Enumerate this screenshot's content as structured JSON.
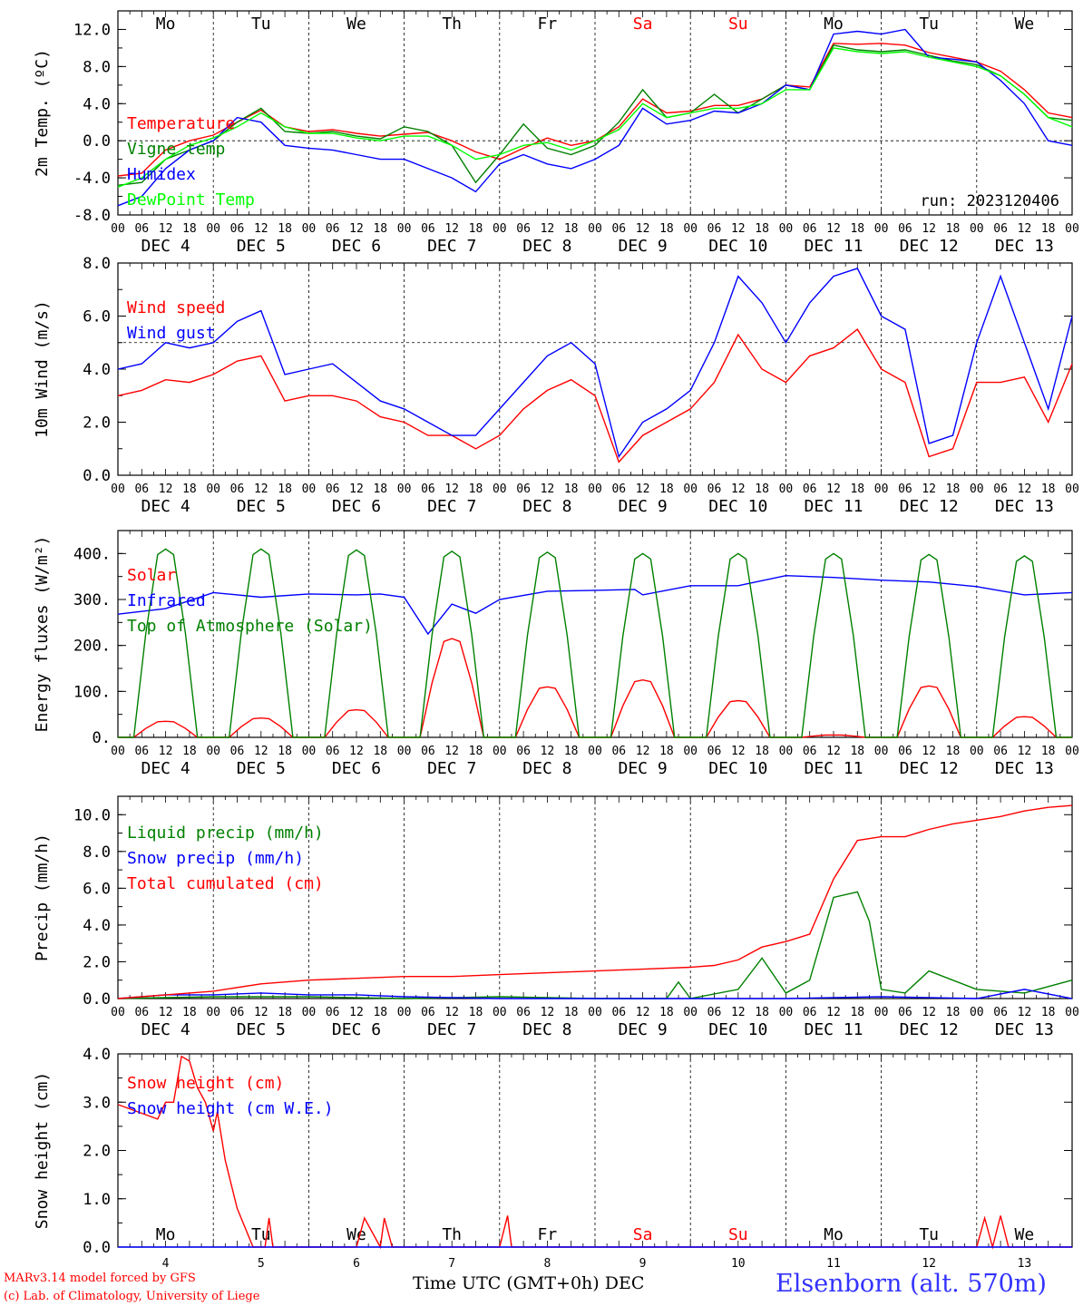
{
  "footer": {
    "credit_line1": "MARv3.14 model forced by GFS",
    "credit_line2": "(c) Lab. of Climatology, University of Liege",
    "time_axis_label": "Time UTC (GMT+0h) DEC",
    "station": "Elsenborn (alt. 570m)"
  },
  "time_axis": {
    "hour_labels": [
      "00",
      "06",
      "12",
      "18"
    ],
    "date_labels": [
      "DEC  4",
      "DEC  5",
      "DEC  6",
      "DEC  7",
      "DEC  8",
      "DEC  9",
      "DEC 10",
      "DEC 11",
      "DEC 12",
      "DEC 13"
    ],
    "weekdays": [
      "Mo",
      "Tu",
      "We",
      "Th",
      "Fr",
      "Sa",
      "Su",
      "Mo",
      "Tu",
      "We"
    ],
    "weekend_color": "#ff0000",
    "day_numbers": [
      "4",
      "5",
      "6",
      "7",
      "8",
      "9",
      "10",
      "11",
      "12",
      "13"
    ]
  },
  "chart_data": [
    {
      "type": "line",
      "ylabel": "2m Temp. (ºC)",
      "ylim": [
        -8,
        14
      ],
      "yticks": [
        "-8.0",
        "-4.0",
        "0.0",
        "4.0",
        "8.0",
        "12.0"
      ],
      "annotation": "run: 2023120406",
      "reference_line": 0,
      "x_unit": "hours since DEC 4 00 UTC",
      "series": [
        {
          "name": "Temperature",
          "color": "#ff0000",
          "x": [
            0,
            6,
            12,
            18,
            24,
            30,
            36,
            42,
            48,
            54,
            60,
            66,
            72,
            78,
            84,
            90,
            96,
            102,
            108,
            114,
            120,
            126,
            132,
            138,
            144,
            150,
            156,
            162,
            168,
            174,
            180,
            186,
            192,
            198,
            204,
            210,
            216,
            222,
            228,
            234,
            240
          ],
          "values": [
            -3.8,
            -3.5,
            -1,
            0,
            0.6,
            2,
            3.3,
            1.5,
            1,
            1.2,
            0.8,
            0.5,
            0.7,
            0.9,
            0,
            -1.2,
            -2,
            -0.8,
            0.3,
            -0.5,
            0,
            1.5,
            4.5,
            3,
            3.2,
            3.8,
            3.8,
            4.5,
            6,
            5.8,
            10.5,
            10.4,
            10.5,
            10.3,
            9.5,
            9,
            8.5,
            7.5,
            5.5,
            3,
            2.5
          ]
        },
        {
          "name": "Vigne temp",
          "color": "#008000",
          "x": [
            0,
            6,
            12,
            18,
            24,
            30,
            36,
            42,
            48,
            54,
            60,
            66,
            72,
            78,
            84,
            90,
            96,
            102,
            108,
            114,
            120,
            126,
            132,
            138,
            144,
            150,
            156,
            162,
            168,
            174,
            180,
            186,
            192,
            198,
            204,
            210,
            216,
            222,
            228,
            234,
            240
          ],
          "values": [
            -4.8,
            -4.5,
            -2,
            -1,
            0,
            2,
            3.5,
            1,
            0.8,
            1,
            0.5,
            0.2,
            1.5,
            1,
            -0.5,
            -4.5,
            -1.5,
            1.8,
            -0.8,
            -1.5,
            -0.5,
            2,
            5.5,
            2.5,
            3,
            5,
            3,
            4.5,
            6,
            5.5,
            10.3,
            9.8,
            9.6,
            9.8,
            9.2,
            8.6,
            8.2,
            7,
            5,
            2.5,
            2.2
          ]
        },
        {
          "name": "Humidex",
          "color": "#0000ff",
          "x": [
            0,
            6,
            12,
            18,
            24,
            30,
            36,
            42,
            48,
            54,
            60,
            66,
            72,
            78,
            84,
            90,
            96,
            102,
            108,
            114,
            120,
            126,
            132,
            138,
            144,
            150,
            156,
            162,
            168,
            174,
            180,
            186,
            192,
            198,
            204,
            210,
            216,
            222,
            228,
            234,
            240
          ],
          "values": [
            -7,
            -6,
            -3,
            -1,
            0,
            2.5,
            2,
            -0.5,
            -0.8,
            -1,
            -1.5,
            -2,
            -2,
            -3,
            -4,
            -5.5,
            -2.5,
            -1.5,
            -2.5,
            -3,
            -2,
            -0.5,
            3.5,
            1.8,
            2.2,
            3.2,
            3,
            4,
            6,
            5.5,
            11.5,
            11.8,
            11.5,
            12,
            9,
            8.8,
            8.5,
            6.5,
            4,
            0,
            -0.5
          ]
        },
        {
          "name": "DewPoint Temp",
          "color": "#00ff00",
          "x": [
            0,
            6,
            12,
            18,
            24,
            30,
            36,
            42,
            48,
            54,
            60,
            66,
            72,
            78,
            84,
            90,
            96,
            102,
            108,
            114,
            120,
            126,
            132,
            138,
            144,
            150,
            156,
            162,
            168,
            174,
            180,
            186,
            192,
            198,
            204,
            210,
            216,
            222,
            228,
            234,
            240
          ],
          "values": [
            -5,
            -4,
            -2,
            -0.5,
            0.3,
            1.5,
            3,
            1.5,
            0.8,
            0.8,
            0.3,
            0,
            0.5,
            0.5,
            -0.5,
            -2,
            -1.5,
            -0.5,
            -0.2,
            -1,
            0,
            1.2,
            4,
            2.5,
            3,
            3.5,
            3.5,
            4,
            5.5,
            5.5,
            10,
            9.6,
            9.4,
            9.6,
            9,
            8.5,
            8,
            7,
            5,
            2.5,
            1.5
          ]
        }
      ]
    },
    {
      "type": "line",
      "ylabel": "10m Wind (m/s)",
      "ylim": [
        0,
        8
      ],
      "yticks": [
        "0.0",
        "2.0",
        "4.0",
        "6.0",
        "8.0"
      ],
      "reference_line": 5,
      "x_unit": "hours since DEC 4 00 UTC",
      "series": [
        {
          "name": "Wind speed",
          "color": "#ff0000",
          "x": [
            0,
            6,
            12,
            18,
            24,
            30,
            36,
            42,
            48,
            54,
            60,
            66,
            72,
            78,
            84,
            90,
            96,
            102,
            108,
            114,
            120,
            126,
            132,
            138,
            144,
            150,
            156,
            162,
            168,
            174,
            180,
            186,
            192,
            198,
            204,
            210,
            216,
            222,
            228,
            234,
            240
          ],
          "values": [
            3,
            3.2,
            3.6,
            3.5,
            3.8,
            4.3,
            4.5,
            2.8,
            3,
            3,
            2.8,
            2.2,
            2,
            1.5,
            1.5,
            1,
            1.5,
            2.5,
            3.2,
            3.6,
            3,
            0.5,
            1.5,
            2,
            2.5,
            3.5,
            5.3,
            4,
            3.5,
            4.5,
            4.8,
            5.5,
            4,
            3.5,
            0.7,
            1,
            3.5,
            3.5,
            3.7,
            2,
            4.2
          ]
        },
        {
          "name": "Wind gust",
          "color": "#0000ff",
          "x": [
            0,
            6,
            12,
            18,
            24,
            30,
            36,
            42,
            48,
            54,
            60,
            66,
            72,
            78,
            84,
            90,
            96,
            102,
            108,
            114,
            120,
            126,
            132,
            138,
            144,
            150,
            156,
            162,
            168,
            174,
            180,
            186,
            192,
            198,
            204,
            210,
            216,
            222,
            228,
            234,
            240
          ],
          "values": [
            4,
            4.2,
            5,
            4.8,
            5,
            5.8,
            6.2,
            3.8,
            4,
            4.2,
            3.5,
            2.8,
            2.5,
            2,
            1.5,
            1.5,
            2.5,
            3.5,
            4.5,
            5,
            4.2,
            0.7,
            2,
            2.5,
            3.2,
            5,
            7.5,
            6.5,
            5,
            6.5,
            7.5,
            7.8,
            6,
            5.5,
            1.2,
            1.5,
            5,
            7.5,
            5,
            2.5,
            6
          ]
        }
      ]
    },
    {
      "type": "line",
      "ylabel": "Energy fluxes (W/m²)",
      "ylim": [
        0,
        450
      ],
      "yticks": [
        "0.",
        "100.",
        "200.",
        "300.",
        "400."
      ],
      "x_unit": "hours since DEC 4 00 UTC",
      "series": [
        {
          "name": "Solar",
          "color": "#ff0000",
          "peaks": [
            [
              12,
              35
            ],
            [
              36,
              42
            ],
            [
              60,
              60
            ],
            [
              84,
              215
            ],
            [
              108,
              110
            ],
            [
              132,
              125
            ],
            [
              156,
              80
            ],
            [
              180,
              5
            ],
            [
              204,
              112
            ],
            [
              228,
              45
            ]
          ]
        },
        {
          "name": "Infrared",
          "color": "#0000ff",
          "x": [
            0,
            12,
            24,
            36,
            48,
            60,
            66,
            72,
            78,
            84,
            90,
            96,
            108,
            120,
            130,
            132,
            144,
            156,
            168,
            180,
            192,
            204,
            216,
            228,
            240
          ],
          "values": [
            268,
            280,
            315,
            305,
            312,
            310,
            312,
            305,
            225,
            290,
            270,
            300,
            318,
            320,
            322,
            310,
            330,
            330,
            352,
            348,
            342,
            338,
            328,
            310,
            315
          ]
        },
        {
          "name": "Top of Atmosphere (Solar)",
          "color": "#008000",
          "peaks": [
            [
              12,
              410
            ],
            [
              36,
              410
            ],
            [
              60,
              408
            ],
            [
              84,
              405
            ],
            [
              108,
              403
            ],
            [
              132,
              400
            ],
            [
              156,
              400
            ],
            [
              180,
              400
            ],
            [
              204,
              398
            ],
            [
              228,
              395
            ]
          ]
        }
      ]
    },
    {
      "type": "line",
      "ylabel": "Precip (mm/h)",
      "ylim": [
        0,
        11
      ],
      "yticks": [
        "0.0",
        "2.0",
        "4.0",
        "6.0",
        "8.0",
        "10.0"
      ],
      "x_unit": "hours since DEC 4 00 UTC",
      "series": [
        {
          "name": "Liquid precip (mm/h)",
          "color": "#008000",
          "x": [
            0,
            24,
            48,
            72,
            96,
            120,
            138,
            141,
            144,
            156,
            162,
            168,
            174,
            180,
            186,
            189,
            192,
            198,
            204,
            216,
            228,
            240
          ],
          "values": [
            0,
            0.1,
            0.1,
            0,
            0.1,
            0,
            0,
            0.9,
            0,
            0.5,
            2.2,
            0.3,
            1,
            5.5,
            5.8,
            4.2,
            0.5,
            0.3,
            1.5,
            0.5,
            0.3,
            1
          ]
        },
        {
          "name": "Snow precip (mm/h)",
          "color": "#0000ff",
          "x": [
            0,
            12,
            24,
            36,
            48,
            60,
            72,
            96,
            120,
            144,
            168,
            192,
            216,
            228,
            240
          ],
          "values": [
            0,
            0.2,
            0.2,
            0.3,
            0.2,
            0.2,
            0.1,
            0,
            0,
            0,
            0,
            0.1,
            0,
            0.5,
            0
          ]
        },
        {
          "name": "Total cumulated (cm)",
          "color": "#ff0000",
          "x": [
            0,
            12,
            24,
            36,
            48,
            60,
            72,
            84,
            96,
            108,
            120,
            132,
            144,
            150,
            156,
            162,
            168,
            174,
            180,
            186,
            192,
            198,
            204,
            210,
            216,
            222,
            228,
            234,
            240
          ],
          "values": [
            0,
            0.2,
            0.4,
            0.8,
            1,
            1.1,
            1.2,
            1.2,
            1.3,
            1.4,
            1.5,
            1.6,
            1.7,
            1.8,
            2.1,
            2.8,
            3.1,
            3.5,
            6.5,
            8.6,
            8.8,
            8.8,
            9.2,
            9.5,
            9.7,
            9.9,
            10.2,
            10.4,
            10.5
          ]
        }
      ]
    },
    {
      "type": "line",
      "ylabel": "Snow height (cm)",
      "ylim": [
        0,
        4
      ],
      "yticks": [
        "0.0",
        "1.0",
        "2.0",
        "3.0",
        "4.0"
      ],
      "x_unit": "hours since DEC 4 00 UTC",
      "series": [
        {
          "name": "Snow height (cm)",
          "color": "#ff0000",
          "x": [
            0,
            10,
            12,
            14,
            16,
            18,
            20,
            22,
            24,
            25,
            27,
            30,
            34,
            37,
            38,
            39,
            40,
            48,
            60,
            62,
            66,
            67,
            69,
            70,
            96,
            98,
            99,
            100,
            102,
            104,
            216,
            218,
            220,
            222,
            224,
            226,
            240
          ],
          "values": [
            2.95,
            2.65,
            3.0,
            3.0,
            3.95,
            3.85,
            3.3,
            3.0,
            2.4,
            2.8,
            1.8,
            0.8,
            0,
            0,
            0.6,
            0,
            0,
            0,
            0,
            0.6,
            0,
            0.6,
            0,
            0,
            0,
            0.65,
            0,
            0,
            0,
            0,
            0,
            0.6,
            0,
            0.65,
            0,
            0,
            0
          ]
        },
        {
          "name": "Snow height (cm W.E.)",
          "color": "#0000ff",
          "x": [
            0,
            240
          ],
          "values": [
            0,
            0
          ]
        }
      ]
    }
  ]
}
